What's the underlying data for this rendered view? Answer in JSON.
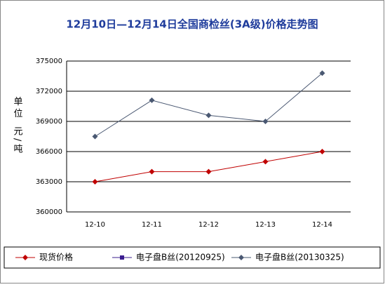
{
  "chart_data": {
    "type": "line",
    "title": "12月10日—12月14日全国商检丝(3A级)价格走势图",
    "y_label": "单位 元/吨",
    "categories": [
      "12-10",
      "12-11",
      "12-12",
      "12-13",
      "12-14"
    ],
    "series": [
      {
        "name": "现货价格",
        "color": "#c00000",
        "marker": "diamond",
        "values": [
          363000,
          364000,
          364000,
          365000,
          366000
        ]
      },
      {
        "name": "电子盘B丝(20120925)",
        "color": "#3b1d8f",
        "marker": "square",
        "values": [
          null,
          null,
          null,
          null,
          null
        ]
      },
      {
        "name": "电子盘B丝(20130325)",
        "color": "#4a5872",
        "marker": "diamond",
        "values": [
          367500,
          371100,
          369600,
          369000,
          373800
        ]
      }
    ],
    "ylim": [
      360000,
      375000
    ],
    "yticks": [
      360000,
      363000,
      366000,
      369000,
      372000,
      375000
    ],
    "grid": true,
    "legend": "bottom"
  }
}
